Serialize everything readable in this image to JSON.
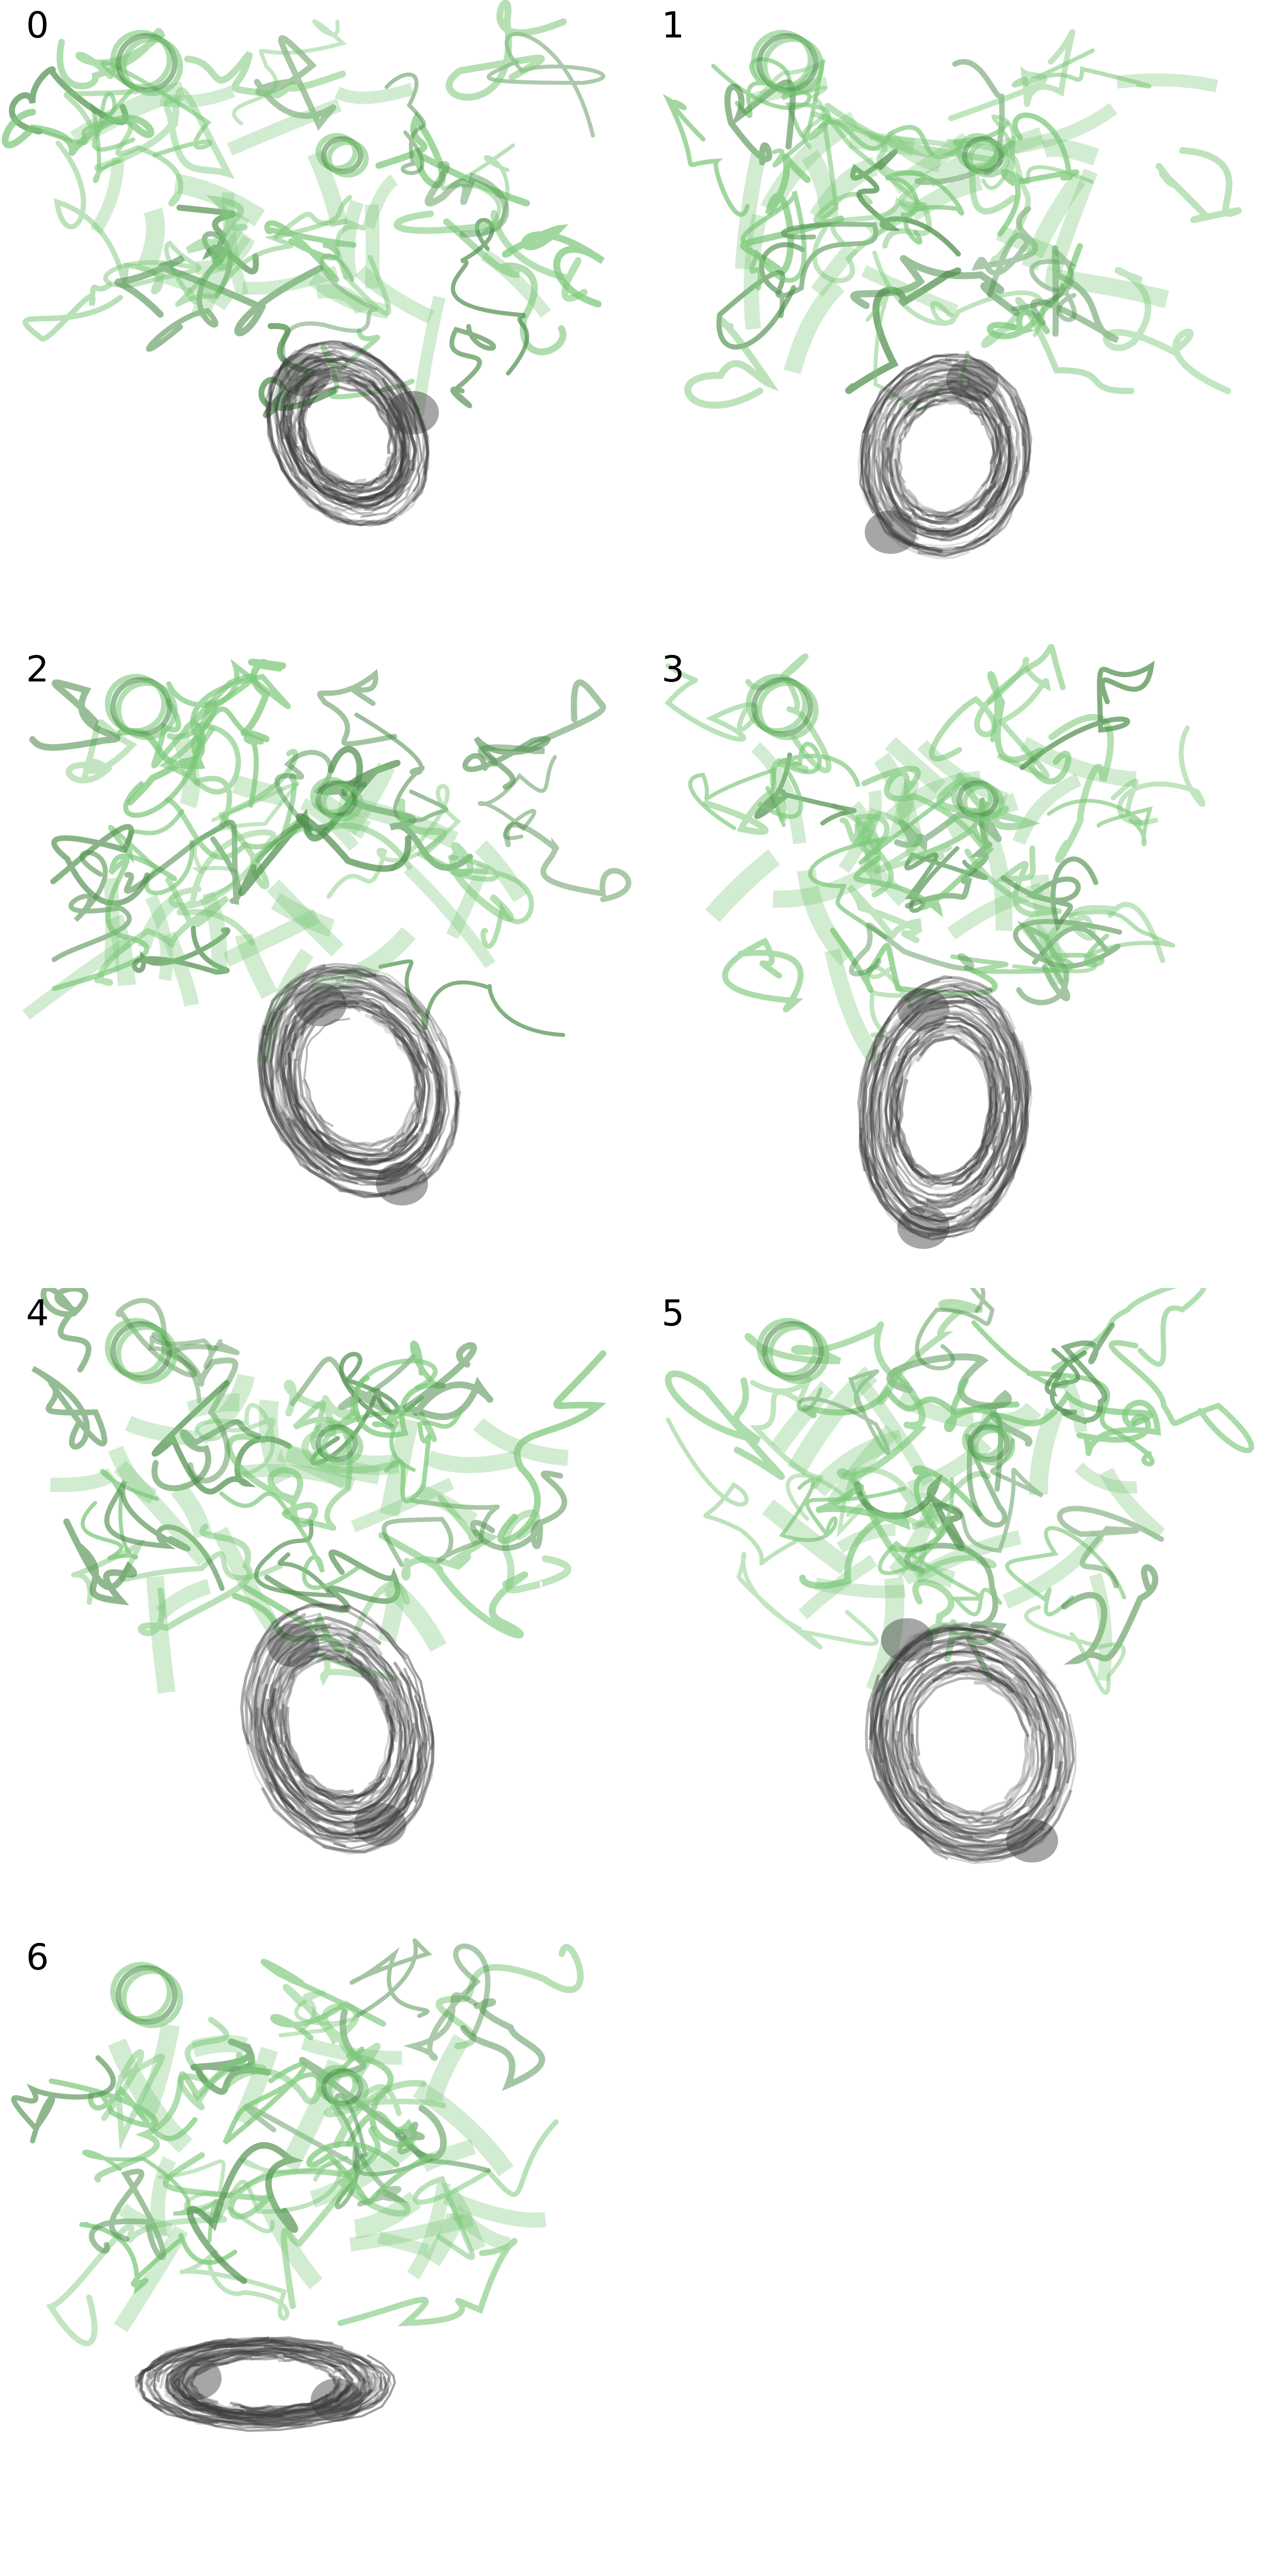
{
  "figure": {
    "panels": [
      {
        "label": "0"
      },
      {
        "label": "1"
      },
      {
        "label": "2"
      },
      {
        "label": "3"
      },
      {
        "label": "4"
      },
      {
        "label": "5"
      },
      {
        "label": "6"
      }
    ]
  },
  "colors": {
    "protein_cartoon": "#7dc87a",
    "protein_cartoon_dark": "#4f8f4c",
    "ligand_trajectory": "#3a3a3a",
    "background": "#ffffff"
  }
}
